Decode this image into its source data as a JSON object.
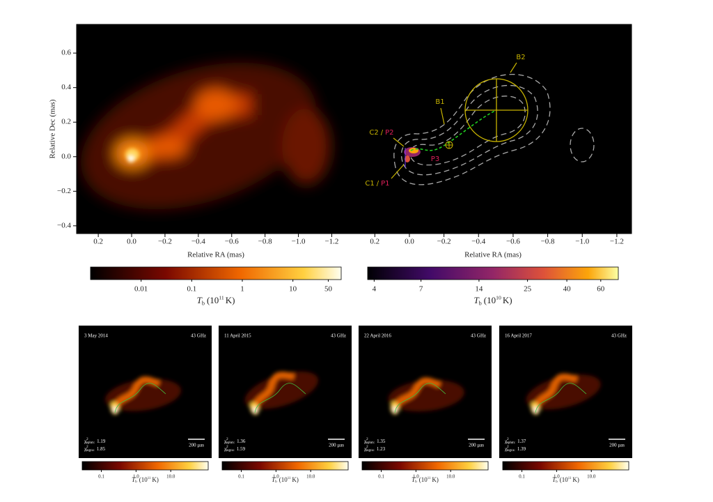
{
  "top_panels": [
    {
      "ylabel": "Relative Dec (mas)",
      "xlabel": "Relative RA (mas)",
      "xlim": [
        0.33,
        -1.34
      ],
      "ylim": [
        -0.445,
        0.766
      ],
      "xticks": [
        0.2,
        {
          "value": 0,
          "label": "0.0"
        },
        {
          "value": -0.2,
          "label": "−0.2"
        },
        {
          "value": -0.4,
          "label": "−0.4"
        },
        {
          "value": -0.6,
          "label": "−0.6"
        },
        {
          "value": -0.8,
          "label": "−0.8"
        },
        {
          "value": -1,
          "label": "−1.0"
        },
        {
          "value": -1.2,
          "label": "−1.2"
        }
      ],
      "yticks": [
        0.6,
        0.4,
        0.2,
        {
          "value": 0,
          "label": "0.0"
        },
        {
          "value": -0.2,
          "label": "−0.2"
        },
        {
          "value": -0.4,
          "label": "−0.4"
        }
      ]
    },
    {
      "xlabel": "Relative RA (mas)",
      "xlim": [
        0.314,
        -1.285
      ],
      "ylim": [
        -0.445,
        0.766
      ],
      "xticks": [
        0.2,
        {
          "value": 0,
          "label": "0.0"
        },
        {
          "value": -0.2,
          "label": "−0.2"
        },
        {
          "value": -0.4,
          "label": "−0.4"
        },
        {
          "value": -0.6,
          "label": "−0.6"
        },
        {
          "value": -0.8,
          "label": "−0.8"
        },
        {
          "value": -1,
          "label": "−1.0"
        },
        {
          "value": -1.2,
          "label": "−1.2"
        }
      ],
      "annotations": [
        {
          "text": "B2"
        },
        {
          "text": "B1"
        },
        {
          "c": "C2",
          "sep": "/",
          "p": "P2"
        },
        {
          "text": "P3"
        },
        {
          "c": "C1",
          "sep": "/",
          "p": "P1"
        }
      ]
    }
  ],
  "colorbars": [
    {
      "colormap": "hot",
      "clim": [
        0.001,
        90
      ],
      "ticks": [
        0.01,
        0.1,
        1,
        10,
        50
      ],
      "label": {
        "symbol": "T",
        "sub": "b",
        "unit": "(10",
        "exponent": "11",
        "unit_end": "K)"
      }
    },
    {
      "colormap": "inferno",
      "clim": [
        3.7,
        74
      ],
      "ticks": [
        4,
        7,
        14,
        25,
        40,
        60
      ],
      "label": {
        "symbol": "T",
        "sub": "b",
        "unit": "(10",
        "exponent": "10",
        "unit_end": "K)"
      }
    }
  ],
  "epochs": [
    {
      "date": "3 May 2014",
      "band": "43 GHz",
      "scale": "200 μas",
      "fits": [
        {
          "symbol": "χ",
          "power": "2",
          "name": "ephm:",
          "value": "1.19"
        },
        {
          "symbol": "χ",
          "power": "2",
          "name": "logca:",
          "value": "1.85"
        }
      ],
      "colorbar": {
        "colormap": "hot",
        "clim": [
          0.028,
          120
        ],
        "ticks": [
          0.1,
          {
            "value": 1,
            "label": "1.0"
          },
          {
            "value": 10,
            "label": "10.0"
          }
        ],
        "label": {
          "symbol": "T",
          "sub": "b",
          "unit": "(10",
          "exponent": "11",
          "unit_end": "K)"
        }
      }
    },
    {
      "date": "11 April 2015",
      "band": "43 GHz",
      "scale": "200 μas",
      "fits": [
        {
          "symbol": "χ",
          "power": "2",
          "name": "ephm:",
          "value": "1.36"
        },
        {
          "symbol": "χ",
          "power": "2",
          "name": "logca:",
          "value": "1.59"
        }
      ],
      "colorbar": {
        "colormap": "hot",
        "clim": [
          0.028,
          120
        ],
        "ticks": [
          0.1,
          {
            "value": 1,
            "label": "1.0"
          },
          {
            "value": 10,
            "label": "10.0"
          }
        ],
        "label": {
          "symbol": "T",
          "sub": "b",
          "unit": "(10",
          "exponent": "11",
          "unit_end": "K)"
        }
      }
    },
    {
      "date": "22 April 2016",
      "band": "43 GHz",
      "scale": "200 μas",
      "fits": [
        {
          "symbol": "χ",
          "power": "2",
          "name": "ephm:",
          "value": "1.35"
        },
        {
          "symbol": "χ",
          "power": "2",
          "name": "logca:",
          "value": "1.23"
        }
      ],
      "colorbar": {
        "colormap": "hot",
        "clim": [
          0.028,
          120
        ],
        "ticks": [
          0.1,
          {
            "value": 1,
            "label": "1.0"
          },
          {
            "value": 10,
            "label": "10.0"
          }
        ],
        "label": {
          "symbol": "T",
          "sub": "b",
          "unit": "(10",
          "exponent": "11",
          "unit_end": "K)"
        }
      }
    },
    {
      "date": "16 April 2017",
      "band": "43 GHz",
      "scale": "200 μas",
      "fits": [
        {
          "symbol": "χ",
          "power": "2",
          "name": "ephm:",
          "value": "1.37"
        },
        {
          "symbol": "χ",
          "power": "2",
          "name": "logca:",
          "value": "1.39"
        }
      ],
      "colorbar": {
        "colormap": "hot",
        "clim": [
          0.028,
          120
        ],
        "ticks": [
          0.1,
          {
            "value": 1,
            "label": "1.0"
          },
          {
            "value": 10,
            "label": "10.0"
          }
        ],
        "label": {
          "symbol": "T",
          "sub": "b",
          "unit": "(10",
          "exponent": "11",
          "unit_end": "K)"
        }
      }
    }
  ]
}
